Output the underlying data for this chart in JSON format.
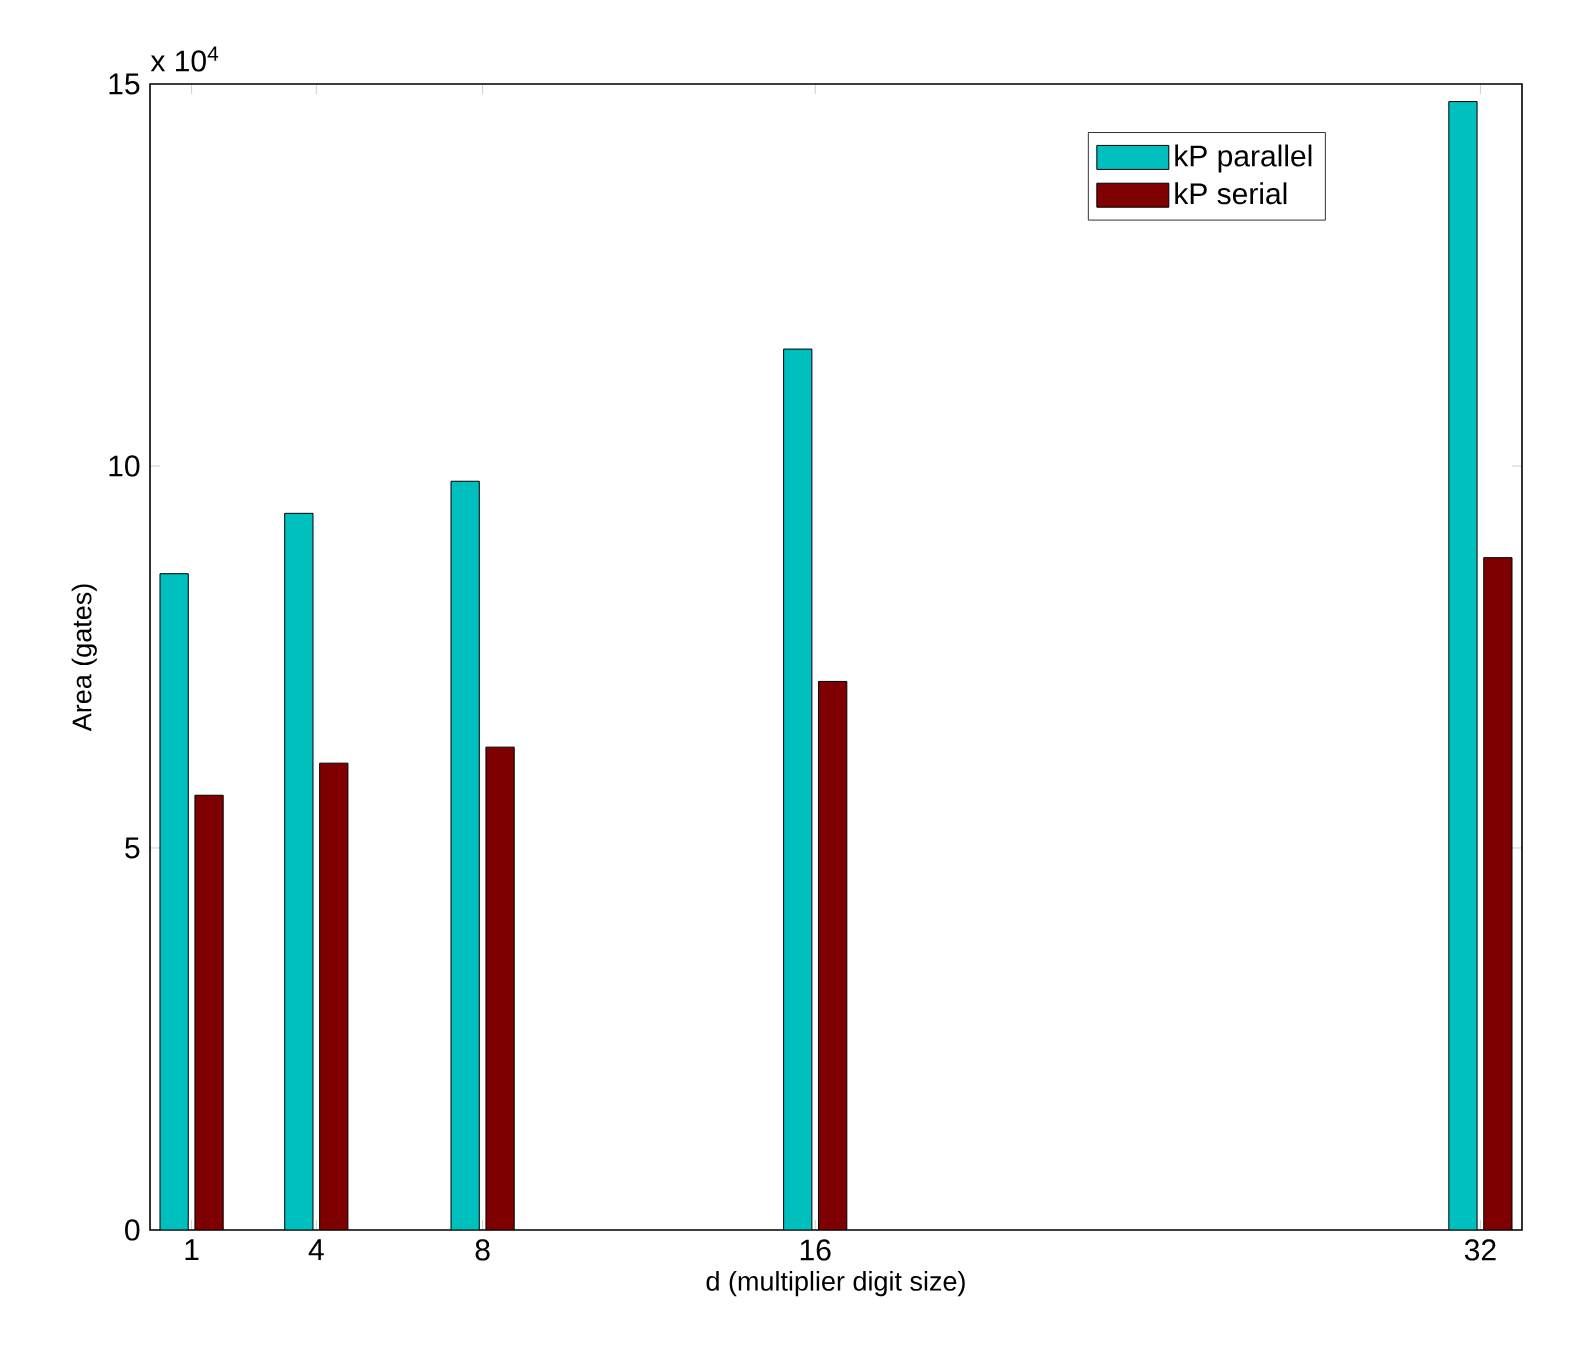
{
  "chart_data": {
    "type": "bar",
    "xlabel": "d (multiplier digit size)",
    "ylabel": "Area (gates)",
    "x": [
      1,
      4,
      8,
      16,
      32
    ],
    "series": [
      {
        "name": "kP parallel",
        "color": "#00bfbf",
        "values": [
          8.59,
          9.38,
          9.8,
          11.53,
          14.77
        ]
      },
      {
        "name": "kP serial",
        "color": "#7f0000",
        "values": [
          5.69,
          6.11,
          6.32,
          7.18,
          8.8
        ]
      }
    ],
    "xlim": [
      0,
      33
    ],
    "ylim": [
      0,
      15
    ],
    "xticks": [
      1,
      4,
      8,
      16,
      32
    ],
    "yticks": [
      0,
      5,
      10,
      15
    ],
    "annotations": [
      "x 10$^{4}$"
    ],
    "grid": false,
    "legend": "top right"
  }
}
